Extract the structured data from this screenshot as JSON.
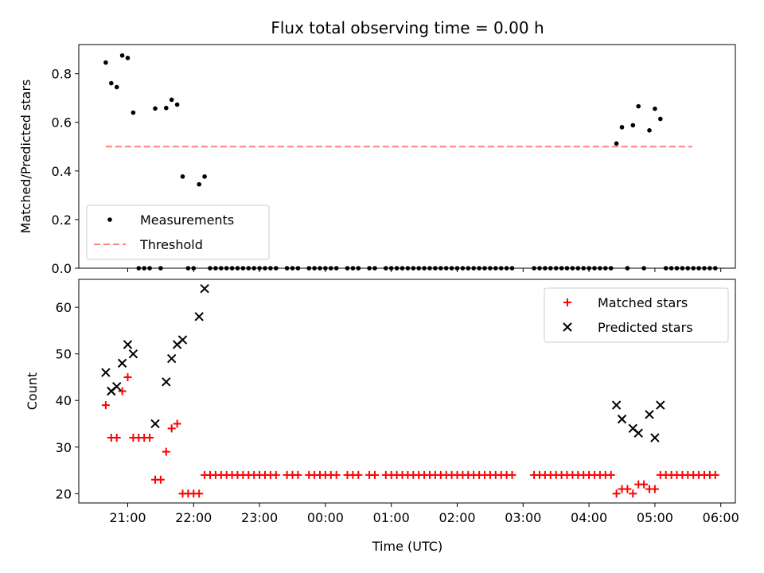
{
  "figure": {
    "title": "Flux total observing time = 0.00 h",
    "xlabel": "Time (UTC)",
    "xticks": [
      "21:00",
      "22:00",
      "23:00",
      "00:00",
      "01:00",
      "02:00",
      "03:00",
      "04:00",
      "05:00",
      "06:00"
    ]
  },
  "chart_data": [
    {
      "type": "scatter",
      "ylabel": "Matched/Predicted stars",
      "ylim": [
        0,
        0.92
      ],
      "yticks": [
        "0.0",
        "0.2",
        "0.4",
        "0.6",
        "0.8"
      ],
      "xticks": [
        "21:00",
        "22:00",
        "23:00",
        "00:00",
        "01:00",
        "02:00",
        "03:00",
        "04:00",
        "05:00",
        "06:00"
      ],
      "legend_position": "lower-left",
      "series": [
        {
          "name": "Measurements",
          "color": "#000000",
          "marker": "dot",
          "points": [
            [
              "20:40",
              0.846
            ],
            [
              "20:45",
              0.761
            ],
            [
              "20:50",
              0.745
            ],
            [
              "20:55",
              0.875
            ],
            [
              "21:00",
              0.865
            ],
            [
              "21:05",
              0.64
            ],
            [
              "21:10",
              0.0
            ],
            [
              "21:15",
              0.0
            ],
            [
              "21:20",
              0.0
            ],
            [
              "21:25",
              0.657
            ],
            [
              "21:30",
              0.0
            ],
            [
              "21:35",
              0.659
            ],
            [
              "21:40",
              0.693
            ],
            [
              "21:45",
              0.673
            ],
            [
              "21:50",
              0.377
            ],
            [
              "21:55",
              0.0
            ],
            [
              "22:00",
              0.0
            ],
            [
              "22:05",
              0.345
            ],
            [
              "22:10",
              0.377
            ],
            [
              "22:15",
              0.0
            ],
            [
              "22:20",
              0.0
            ],
            [
              "22:25",
              0.0
            ],
            [
              "22:30",
              0.0
            ],
            [
              "22:35",
              0.0
            ],
            [
              "22:40",
              0.0
            ],
            [
              "22:45",
              0.0
            ],
            [
              "22:50",
              0.0
            ],
            [
              "22:55",
              0.0
            ],
            [
              "23:00",
              0.0
            ],
            [
              "23:05",
              0.0
            ],
            [
              "23:10",
              0.0
            ],
            [
              "23:15",
              0.0
            ],
            [
              "23:25",
              0.0
            ],
            [
              "23:30",
              0.0
            ],
            [
              "23:35",
              0.0
            ],
            [
              "23:45",
              0.0
            ],
            [
              "23:50",
              0.0
            ],
            [
              "23:55",
              0.0
            ],
            [
              "00:00",
              0.0
            ],
            [
              "00:05",
              0.0
            ],
            [
              "00:10",
              0.0
            ],
            [
              "00:20",
              0.0
            ],
            [
              "00:25",
              0.0
            ],
            [
              "00:30",
              0.0
            ],
            [
              "00:40",
              0.0
            ],
            [
              "00:45",
              0.0
            ],
            [
              "00:55",
              0.0
            ],
            [
              "01:00",
              0.0
            ],
            [
              "01:05",
              0.0
            ],
            [
              "01:10",
              0.0
            ],
            [
              "01:15",
              0.0
            ],
            [
              "01:20",
              0.0
            ],
            [
              "01:25",
              0.0
            ],
            [
              "01:30",
              0.0
            ],
            [
              "01:35",
              0.0
            ],
            [
              "01:40",
              0.0
            ],
            [
              "01:45",
              0.0
            ],
            [
              "01:50",
              0.0
            ],
            [
              "01:55",
              0.0
            ],
            [
              "02:00",
              0.0
            ],
            [
              "02:05",
              0.0
            ],
            [
              "02:10",
              0.0
            ],
            [
              "02:15",
              0.0
            ],
            [
              "02:20",
              0.0
            ],
            [
              "02:25",
              0.0
            ],
            [
              "02:30",
              0.0
            ],
            [
              "02:35",
              0.0
            ],
            [
              "02:40",
              0.0
            ],
            [
              "02:45",
              0.0
            ],
            [
              "02:50",
              0.0
            ],
            [
              "03:10",
              0.0
            ],
            [
              "03:15",
              0.0
            ],
            [
              "03:20",
              0.0
            ],
            [
              "03:25",
              0.0
            ],
            [
              "03:30",
              0.0
            ],
            [
              "03:35",
              0.0
            ],
            [
              "03:40",
              0.0
            ],
            [
              "03:45",
              0.0
            ],
            [
              "03:50",
              0.0
            ],
            [
              "03:55",
              0.0
            ],
            [
              "04:00",
              0.0
            ],
            [
              "04:05",
              0.0
            ],
            [
              "04:10",
              0.0
            ],
            [
              "04:15",
              0.0
            ],
            [
              "04:20",
              0.0
            ],
            [
              "04:25",
              0.513
            ],
            [
              "04:30",
              0.58
            ],
            [
              "04:35",
              0.0
            ],
            [
              "04:40",
              0.588
            ],
            [
              "04:45",
              0.666
            ],
            [
              "04:50",
              0.0
            ],
            [
              "04:55",
              0.567
            ],
            [
              "05:00",
              0.656
            ],
            [
              "05:05",
              0.614
            ],
            [
              "05:10",
              0.0
            ],
            [
              "05:15",
              0.0
            ],
            [
              "05:20",
              0.0
            ],
            [
              "05:25",
              0.0
            ],
            [
              "05:30",
              0.0
            ],
            [
              "05:35",
              0.0
            ],
            [
              "05:40",
              0.0
            ],
            [
              "05:45",
              0.0
            ],
            [
              "05:50",
              0.0
            ],
            [
              "05:55",
              0.0
            ]
          ]
        },
        {
          "name": "Threshold",
          "color": "#ff7f7f",
          "style": "dashed",
          "x_range": [
            "20:40",
            "06:00"
          ],
          "value": 0.5
        }
      ]
    },
    {
      "type": "scatter",
      "ylabel": "Count",
      "ylim": [
        18,
        66
      ],
      "yticks": [
        "20",
        "30",
        "40",
        "50",
        "60"
      ],
      "xticks": [
        "21:00",
        "22:00",
        "23:00",
        "00:00",
        "01:00",
        "02:00",
        "03:00",
        "04:00",
        "05:00",
        "06:00"
      ],
      "legend_position": "upper-right",
      "series": [
        {
          "name": "Matched stars",
          "color": "#ff0000",
          "marker": "plus",
          "points": [
            [
              "20:40",
              39
            ],
            [
              "20:45",
              32
            ],
            [
              "20:50",
              32
            ],
            [
              "20:55",
              42
            ],
            [
              "21:00",
              45
            ],
            [
              "21:05",
              32
            ],
            [
              "21:10",
              32
            ],
            [
              "21:15",
              32
            ],
            [
              "21:20",
              32
            ],
            [
              "21:25",
              23
            ],
            [
              "21:30",
              23
            ],
            [
              "21:35",
              29
            ],
            [
              "21:40",
              34
            ],
            [
              "21:45",
              35
            ],
            [
              "21:50",
              20
            ],
            [
              "21:55",
              20
            ],
            [
              "22:00",
              20
            ],
            [
              "22:05",
              20
            ],
            [
              "22:10",
              24
            ],
            [
              "22:15",
              24
            ],
            [
              "22:20",
              24
            ],
            [
              "22:25",
              24
            ],
            [
              "22:30",
              24
            ],
            [
              "22:35",
              24
            ],
            [
              "22:40",
              24
            ],
            [
              "22:45",
              24
            ],
            [
              "22:50",
              24
            ],
            [
              "22:55",
              24
            ],
            [
              "23:00",
              24
            ],
            [
              "23:05",
              24
            ],
            [
              "23:10",
              24
            ],
            [
              "23:15",
              24
            ],
            [
              "23:25",
              24
            ],
            [
              "23:30",
              24
            ],
            [
              "23:35",
              24
            ],
            [
              "23:45",
              24
            ],
            [
              "23:50",
              24
            ],
            [
              "23:55",
              24
            ],
            [
              "00:00",
              24
            ],
            [
              "00:05",
              24
            ],
            [
              "00:10",
              24
            ],
            [
              "00:20",
              24
            ],
            [
              "00:25",
              24
            ],
            [
              "00:30",
              24
            ],
            [
              "00:40",
              24
            ],
            [
              "00:45",
              24
            ],
            [
              "00:55",
              24
            ],
            [
              "01:00",
              24
            ],
            [
              "01:05",
              24
            ],
            [
              "01:10",
              24
            ],
            [
              "01:15",
              24
            ],
            [
              "01:20",
              24
            ],
            [
              "01:25",
              24
            ],
            [
              "01:30",
              24
            ],
            [
              "01:35",
              24
            ],
            [
              "01:40",
              24
            ],
            [
              "01:45",
              24
            ],
            [
              "01:50",
              24
            ],
            [
              "01:55",
              24
            ],
            [
              "02:00",
              24
            ],
            [
              "02:05",
              24
            ],
            [
              "02:10",
              24
            ],
            [
              "02:15",
              24
            ],
            [
              "02:20",
              24
            ],
            [
              "02:25",
              24
            ],
            [
              "02:30",
              24
            ],
            [
              "02:35",
              24
            ],
            [
              "02:40",
              24
            ],
            [
              "02:45",
              24
            ],
            [
              "02:50",
              24
            ],
            [
              "03:10",
              24
            ],
            [
              "03:15",
              24
            ],
            [
              "03:20",
              24
            ],
            [
              "03:25",
              24
            ],
            [
              "03:30",
              24
            ],
            [
              "03:35",
              24
            ],
            [
              "03:40",
              24
            ],
            [
              "03:45",
              24
            ],
            [
              "03:50",
              24
            ],
            [
              "03:55",
              24
            ],
            [
              "04:00",
              24
            ],
            [
              "04:05",
              24
            ],
            [
              "04:10",
              24
            ],
            [
              "04:15",
              24
            ],
            [
              "04:20",
              24
            ],
            [
              "04:25",
              20
            ],
            [
              "04:30",
              21
            ],
            [
              "04:35",
              21
            ],
            [
              "04:40",
              20
            ],
            [
              "04:45",
              22
            ],
            [
              "04:50",
              22
            ],
            [
              "04:55",
              21
            ],
            [
              "05:00",
              21
            ],
            [
              "05:05",
              24
            ],
            [
              "05:10",
              24
            ],
            [
              "05:15",
              24
            ],
            [
              "05:20",
              24
            ],
            [
              "05:25",
              24
            ],
            [
              "05:30",
              24
            ],
            [
              "05:35",
              24
            ],
            [
              "05:40",
              24
            ],
            [
              "05:45",
              24
            ],
            [
              "05:50",
              24
            ],
            [
              "05:55",
              24
            ]
          ]
        },
        {
          "name": "Predicted stars",
          "color": "#000000",
          "marker": "x",
          "points": [
            [
              "20:40",
              46
            ],
            [
              "20:45",
              42
            ],
            [
              "20:50",
              43
            ],
            [
              "20:55",
              48
            ],
            [
              "21:00",
              52
            ],
            [
              "21:05",
              50
            ],
            [
              "21:25",
              35
            ],
            [
              "21:35",
              44
            ],
            [
              "21:40",
              49
            ],
            [
              "21:45",
              52
            ],
            [
              "21:50",
              53
            ],
            [
              "22:05",
              58
            ],
            [
              "22:10",
              64
            ],
            [
              "04:25",
              39
            ],
            [
              "04:30",
              36
            ],
            [
              "04:40",
              34
            ],
            [
              "04:45",
              33
            ],
            [
              "04:55",
              37
            ],
            [
              "05:00",
              32
            ],
            [
              "05:05",
              39
            ]
          ]
        }
      ]
    }
  ]
}
